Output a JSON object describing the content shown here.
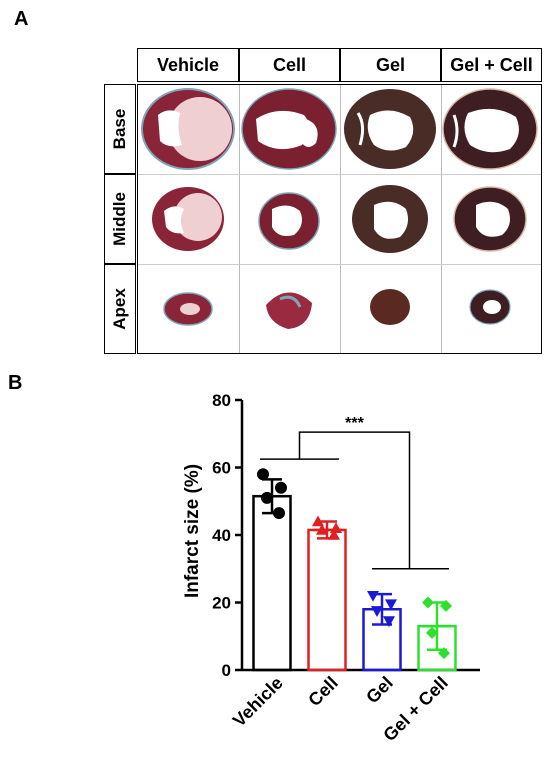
{
  "panel_a": {
    "letter": "A",
    "columns": [
      "Vehicle",
      "Cell",
      "Gel",
      "Gel + Cell"
    ],
    "rows": [
      "Base",
      "Middle",
      "Apex"
    ]
  },
  "panel_b": {
    "letter": "B"
  },
  "colors": {
    "vehicle": "#000000",
    "cell": "#e02020",
    "gel": "#1a1ad6",
    "gel_cell": "#2ee02e",
    "tissue_red": "#8a2438",
    "tissue_brown": "#4a2c26",
    "infarct_pink": "#f0cfd2",
    "fibrosis_blue": "#7ea6b8"
  },
  "chart_data": {
    "type": "bar",
    "categories": [
      "Vehicle",
      "Cell",
      "Gel",
      "Gel + Cell"
    ],
    "values": [
      51.5,
      41.5,
      18,
      13
    ],
    "errors": [
      5,
      2.5,
      4.5,
      7
    ],
    "points": [
      [
        58,
        54,
        51,
        46.5
      ],
      [
        44,
        42,
        41.5,
        40
      ],
      [
        22,
        19.5,
        17.5,
        14.5
      ],
      [
        20,
        19,
        11,
        5
      ]
    ],
    "markers": [
      "circle",
      "triangle-up",
      "triangle-down",
      "diamond"
    ],
    "ylabel": "Infarct size (%)",
    "ylim": [
      0,
      80
    ],
    "yticks": [
      0,
      20,
      40,
      60,
      80
    ],
    "significance": "***"
  }
}
